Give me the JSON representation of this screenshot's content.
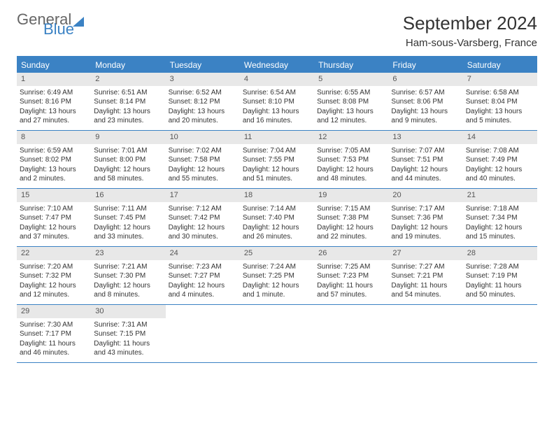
{
  "logo": {
    "part1": "General",
    "part2": "Blue"
  },
  "title": "September 2024",
  "location": "Ham-sous-Varsberg, France",
  "colors": {
    "accent": "#3b82c4",
    "daynum_bg": "#e8e8e8",
    "text": "#333333"
  },
  "day_headers": [
    "Sunday",
    "Monday",
    "Tuesday",
    "Wednesday",
    "Thursday",
    "Friday",
    "Saturday"
  ],
  "weeks": [
    [
      {
        "n": "1",
        "sr": "Sunrise: 6:49 AM",
        "ss": "Sunset: 8:16 PM",
        "dl": "Daylight: 13 hours and 27 minutes."
      },
      {
        "n": "2",
        "sr": "Sunrise: 6:51 AM",
        "ss": "Sunset: 8:14 PM",
        "dl": "Daylight: 13 hours and 23 minutes."
      },
      {
        "n": "3",
        "sr": "Sunrise: 6:52 AM",
        "ss": "Sunset: 8:12 PM",
        "dl": "Daylight: 13 hours and 20 minutes."
      },
      {
        "n": "4",
        "sr": "Sunrise: 6:54 AM",
        "ss": "Sunset: 8:10 PM",
        "dl": "Daylight: 13 hours and 16 minutes."
      },
      {
        "n": "5",
        "sr": "Sunrise: 6:55 AM",
        "ss": "Sunset: 8:08 PM",
        "dl": "Daylight: 13 hours and 12 minutes."
      },
      {
        "n": "6",
        "sr": "Sunrise: 6:57 AM",
        "ss": "Sunset: 8:06 PM",
        "dl": "Daylight: 13 hours and 9 minutes."
      },
      {
        "n": "7",
        "sr": "Sunrise: 6:58 AM",
        "ss": "Sunset: 8:04 PM",
        "dl": "Daylight: 13 hours and 5 minutes."
      }
    ],
    [
      {
        "n": "8",
        "sr": "Sunrise: 6:59 AM",
        "ss": "Sunset: 8:02 PM",
        "dl": "Daylight: 13 hours and 2 minutes."
      },
      {
        "n": "9",
        "sr": "Sunrise: 7:01 AM",
        "ss": "Sunset: 8:00 PM",
        "dl": "Daylight: 12 hours and 58 minutes."
      },
      {
        "n": "10",
        "sr": "Sunrise: 7:02 AM",
        "ss": "Sunset: 7:58 PM",
        "dl": "Daylight: 12 hours and 55 minutes."
      },
      {
        "n": "11",
        "sr": "Sunrise: 7:04 AM",
        "ss": "Sunset: 7:55 PM",
        "dl": "Daylight: 12 hours and 51 minutes."
      },
      {
        "n": "12",
        "sr": "Sunrise: 7:05 AM",
        "ss": "Sunset: 7:53 PM",
        "dl": "Daylight: 12 hours and 48 minutes."
      },
      {
        "n": "13",
        "sr": "Sunrise: 7:07 AM",
        "ss": "Sunset: 7:51 PM",
        "dl": "Daylight: 12 hours and 44 minutes."
      },
      {
        "n": "14",
        "sr": "Sunrise: 7:08 AM",
        "ss": "Sunset: 7:49 PM",
        "dl": "Daylight: 12 hours and 40 minutes."
      }
    ],
    [
      {
        "n": "15",
        "sr": "Sunrise: 7:10 AM",
        "ss": "Sunset: 7:47 PM",
        "dl": "Daylight: 12 hours and 37 minutes."
      },
      {
        "n": "16",
        "sr": "Sunrise: 7:11 AM",
        "ss": "Sunset: 7:45 PM",
        "dl": "Daylight: 12 hours and 33 minutes."
      },
      {
        "n": "17",
        "sr": "Sunrise: 7:12 AM",
        "ss": "Sunset: 7:42 PM",
        "dl": "Daylight: 12 hours and 30 minutes."
      },
      {
        "n": "18",
        "sr": "Sunrise: 7:14 AM",
        "ss": "Sunset: 7:40 PM",
        "dl": "Daylight: 12 hours and 26 minutes."
      },
      {
        "n": "19",
        "sr": "Sunrise: 7:15 AM",
        "ss": "Sunset: 7:38 PM",
        "dl": "Daylight: 12 hours and 22 minutes."
      },
      {
        "n": "20",
        "sr": "Sunrise: 7:17 AM",
        "ss": "Sunset: 7:36 PM",
        "dl": "Daylight: 12 hours and 19 minutes."
      },
      {
        "n": "21",
        "sr": "Sunrise: 7:18 AM",
        "ss": "Sunset: 7:34 PM",
        "dl": "Daylight: 12 hours and 15 minutes."
      }
    ],
    [
      {
        "n": "22",
        "sr": "Sunrise: 7:20 AM",
        "ss": "Sunset: 7:32 PM",
        "dl": "Daylight: 12 hours and 12 minutes."
      },
      {
        "n": "23",
        "sr": "Sunrise: 7:21 AM",
        "ss": "Sunset: 7:30 PM",
        "dl": "Daylight: 12 hours and 8 minutes."
      },
      {
        "n": "24",
        "sr": "Sunrise: 7:23 AM",
        "ss": "Sunset: 7:27 PM",
        "dl": "Daylight: 12 hours and 4 minutes."
      },
      {
        "n": "25",
        "sr": "Sunrise: 7:24 AM",
        "ss": "Sunset: 7:25 PM",
        "dl": "Daylight: 12 hours and 1 minute."
      },
      {
        "n": "26",
        "sr": "Sunrise: 7:25 AM",
        "ss": "Sunset: 7:23 PM",
        "dl": "Daylight: 11 hours and 57 minutes."
      },
      {
        "n": "27",
        "sr": "Sunrise: 7:27 AM",
        "ss": "Sunset: 7:21 PM",
        "dl": "Daylight: 11 hours and 54 minutes."
      },
      {
        "n": "28",
        "sr": "Sunrise: 7:28 AM",
        "ss": "Sunset: 7:19 PM",
        "dl": "Daylight: 11 hours and 50 minutes."
      }
    ],
    [
      {
        "n": "29",
        "sr": "Sunrise: 7:30 AM",
        "ss": "Sunset: 7:17 PM",
        "dl": "Daylight: 11 hours and 46 minutes."
      },
      {
        "n": "30",
        "sr": "Sunrise: 7:31 AM",
        "ss": "Sunset: 7:15 PM",
        "dl": "Daylight: 11 hours and 43 minutes."
      },
      {
        "empty": true
      },
      {
        "empty": true
      },
      {
        "empty": true
      },
      {
        "empty": true
      },
      {
        "empty": true
      }
    ]
  ]
}
